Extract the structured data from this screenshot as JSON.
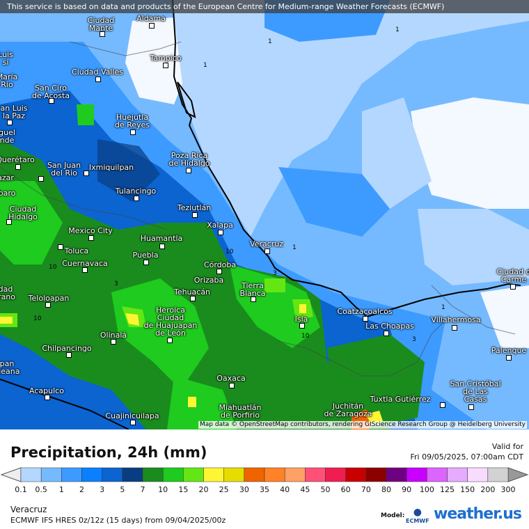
{
  "header": {
    "notice": "This service is based on data and products of the European Centre for Medium-range Weather Forecasts (ECMWF)"
  },
  "map": {
    "attribution": "Map data © OpenStreetMap contributors, rendering GIScience Research Group @ Heidelberg University",
    "cities": [
      {
        "name": "Ciudad\nMante"
      },
      {
        "name": "Aldama"
      },
      {
        "name": "Tampico"
      },
      {
        "name": "Ciudad Valles"
      },
      {
        "name": "San Ciro\nde Acosta"
      },
      {
        "name": "an Luis\nla Paz"
      },
      {
        "name": "Huejutla\nde Reyes"
      },
      {
        "name": "Querétaro"
      },
      {
        "name": "San Juan\ndel Rio"
      },
      {
        "name": "Ixmiquilpan"
      },
      {
        "name": "Poza Rica\nde Hidalgo"
      },
      {
        "name": "Tulancingo"
      },
      {
        "name": "Teziutlán"
      },
      {
        "name": "Ciudad\nHidalgo"
      },
      {
        "name": "Mexico City"
      },
      {
        "name": "Xalapa"
      },
      {
        "name": "Huamantla"
      },
      {
        "name": "Veracruz"
      },
      {
        "name": "Toluca"
      },
      {
        "name": "Puebla"
      },
      {
        "name": "Cuernavaca"
      },
      {
        "name": "Córdoba"
      },
      {
        "name": "Orizaba"
      },
      {
        "name": "Tierra\nBlanca"
      },
      {
        "name": "Tehuacán"
      },
      {
        "name": "Teloloapan"
      },
      {
        "name": "Heroica\nCiudad\nde Huajuapan\nde León"
      },
      {
        "name": "Isla"
      },
      {
        "name": "Coatzacoalcos"
      },
      {
        "name": "Las Choapas"
      },
      {
        "name": "Villahermosa"
      },
      {
        "name": "Ciudad d\nCarme"
      },
      {
        "name": "Palenque"
      },
      {
        "name": "Olinalá"
      },
      {
        "name": "Chilpancingo"
      },
      {
        "name": "Oaxaca"
      },
      {
        "name": "San Cristóbal\nde Las\nCasas"
      },
      {
        "name": "Tuxtla Gutiérrez"
      },
      {
        "name": "Acapulco"
      },
      {
        "name": "Juchitán\nde Zaragoza"
      },
      {
        "name": "Miahuatlán\nde Porfirio"
      },
      {
        "name": "Cuajinicuilapa"
      },
      {
        "name": "Luis\nsí"
      },
      {
        "name": "María\nRio"
      },
      {
        "name": "guel\nnde"
      },
      {
        "name": "azar"
      },
      {
        "name": "baro"
      },
      {
        "name": "dad\nirano"
      },
      {
        "name": "pan\naleana"
      }
    ],
    "contour_labels": [
      "1",
      "1",
      "1",
      "1",
      "3",
      "10",
      "10",
      "10",
      "3",
      "1",
      "3",
      "10"
    ]
  },
  "legend": {
    "title": "Precipitation, 24h (mm)",
    "valid_label": "Valid for",
    "valid_time": "Fri 09/05/2025, 07:00am CDT",
    "ticks": [
      "0.1",
      "0.5",
      "1",
      "2",
      "3",
      "5",
      "7",
      "10",
      "15",
      "20",
      "25",
      "30",
      "35",
      "40",
      "45",
      "50",
      "60",
      "70",
      "80",
      "90",
      "100",
      "125",
      "150",
      "200",
      "300"
    ],
    "colors": [
      "#b4d7ff",
      "#75baff",
      "#3d9bff",
      "#0a80ff",
      "#0b64d0",
      "#0a3c82",
      "#1a8c1e",
      "#1ecb1e",
      "#64e614",
      "#fff532",
      "#e6dc00",
      "#f06400",
      "#ff8228",
      "#ffa064",
      "#ff5078",
      "#f01e50",
      "#c80000",
      "#8c0000",
      "#6e0082",
      "#c800ff",
      "#dc64ff",
      "#e6aaff",
      "#f8dcff",
      "#d2d2d2"
    ],
    "under_color": "#eeeeee",
    "over_color": "#999999"
  },
  "footer": {
    "location": "Veracruz",
    "model_run": "ECMWF IFS HRES 0z/12z (15 days) from  09/04/2025/00z",
    "model_label": "Model:",
    "model_logo": "ECMWF",
    "brand": "weather.us"
  }
}
